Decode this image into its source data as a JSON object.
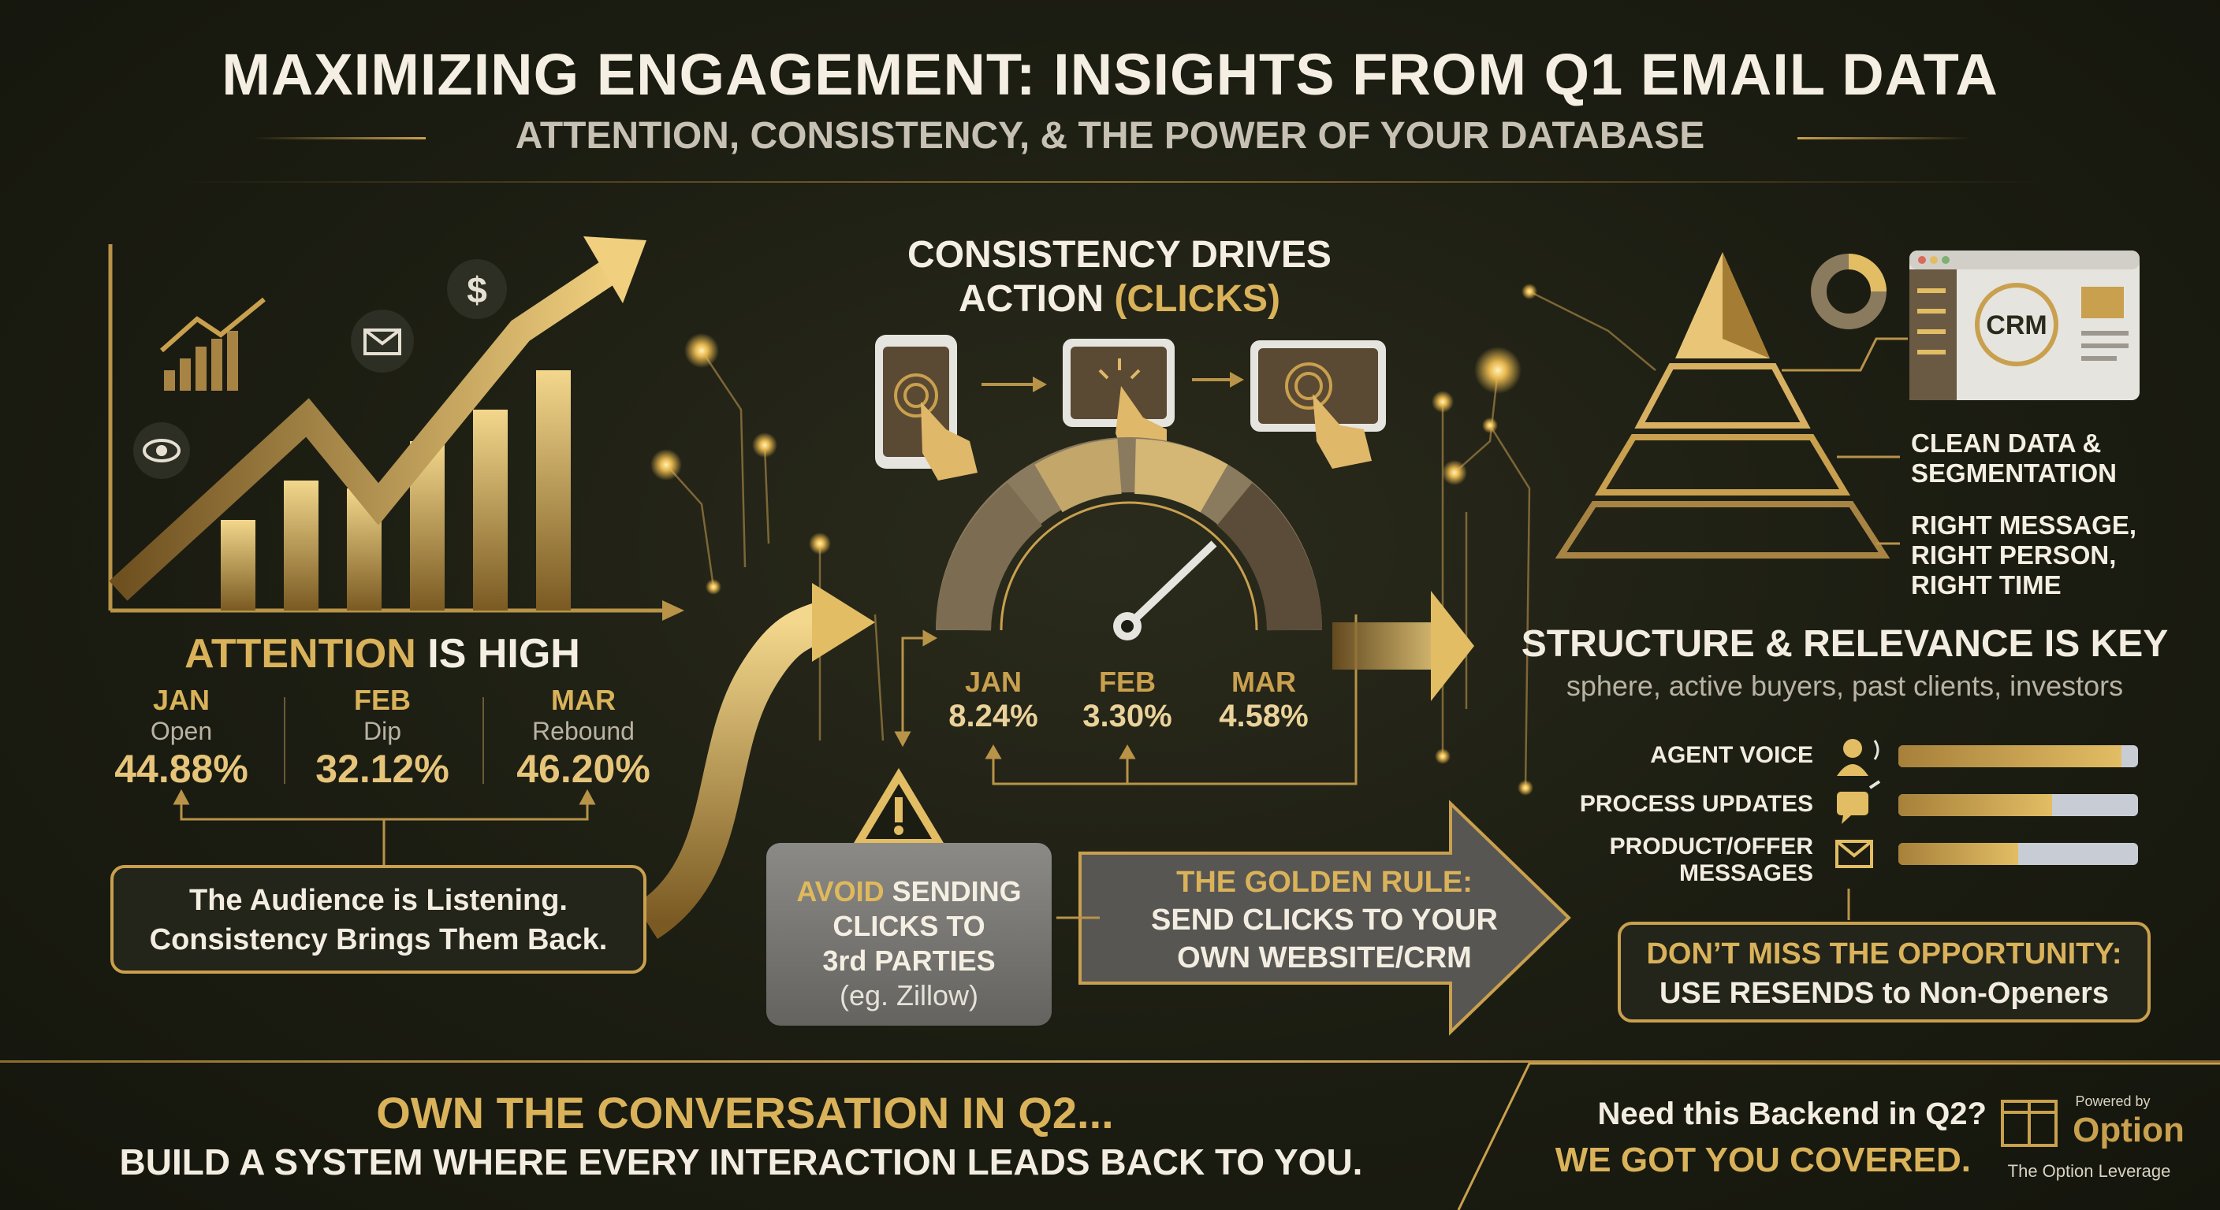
{
  "header": {
    "title": "MAXIMIZING ENGAGEMENT: INSIGHTS FROM Q1 EMAIL DATA",
    "subtitle": "ATTENTION, CONSISTENCY, & THE POWER OF YOUR DATABASE"
  },
  "attention": {
    "heading_accent": "ATTENTION",
    "heading_rest": " IS HIGH",
    "stats": [
      {
        "month": "JAN",
        "label": "Open",
        "value": "44.88%"
      },
      {
        "month": "FEB",
        "label": "Dip",
        "value": "32.12%"
      },
      {
        "month": "MAR",
        "label": "Rebound",
        "value": "46.20%"
      }
    ],
    "callout_line1": "The Audience is Listening.",
    "callout_line2": "Consistency Brings Them Back."
  },
  "consistency": {
    "heading_line1": "CONSISTENCY DRIVES",
    "heading_line2_main": "ACTION ",
    "heading_line2_accent": "(CLICKS)",
    "gauge": [
      {
        "month": "JAN",
        "value": "8.24%"
      },
      {
        "month": "FEB",
        "value": "3.30%"
      },
      {
        "month": "MAR",
        "value": "4.58%"
      }
    ],
    "avoid_accent": "AVOID",
    "avoid_rest1": " SENDING",
    "avoid_line2": "CLICKS TO",
    "avoid_line3": "3rd PARTIES",
    "avoid_eg": "(eg. Zillow)",
    "rule_line1": "THE GOLDEN RULE:",
    "rule_line2": "SEND CLICKS TO YOUR",
    "rule_line3": "OWN WEBSITE/CRM"
  },
  "structure": {
    "crm_label": "CRM",
    "pyramid_label1_line1": "CLEAN DATA &",
    "pyramid_label1_line2": "SEGMENTATION",
    "pyramid_label2_line1": "RIGHT MESSAGE,",
    "pyramid_label2_line2": "RIGHT PERSON,",
    "pyramid_label2_line3": "RIGHT TIME",
    "heading": "STRUCTURE & RELEVANCE IS KEY",
    "subheading": "sphere, active buyers, past clients, investors",
    "rows": [
      {
        "label": "AGENT VOICE",
        "icon": "speaking-person-icon",
        "fill": 0.93
      },
      {
        "label": "PROCESS UPDATES",
        "icon": "chat-bubble-icon",
        "fill": 0.64
      },
      {
        "label": "PRODUCT/OFFER MESSAGES",
        "icon": "envelope-icon",
        "fill": 0.5
      }
    ],
    "opp_line1": "DON’T MISS THE OPPORTUNITY:",
    "opp_line2": "USE RESENDS to Non-Openers"
  },
  "footer": {
    "own": "OWN THE CONVERSATION IN Q2...",
    "build": "BUILD A SYSTEM WHERE EVERY INTERACTION LEADS BACK TO YOU.",
    "need": "Need this Backend in Q2?",
    "covered": "WE GOT YOU COVERED.",
    "powered": "Powered by",
    "brand": "Option",
    "leverage": "The Option Leverage"
  },
  "colors": {
    "gold": "#d9b25a",
    "background": "#1c1d12",
    "text": "#f4efe2"
  }
}
